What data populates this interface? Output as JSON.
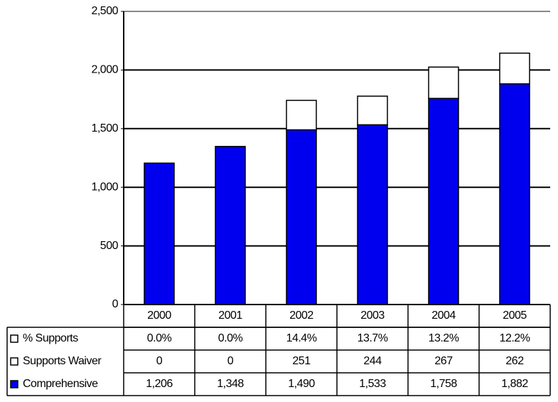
{
  "chart_data": {
    "type": "bar",
    "stacked": true,
    "categories": [
      "2000",
      "2001",
      "2002",
      "2003",
      "2004",
      "2005"
    ],
    "series": [
      {
        "name": "Comprehensive",
        "color": "#0000ee",
        "values": [
          1206,
          1348,
          1490,
          1533,
          1758,
          1882
        ],
        "value_labels": [
          "1,206",
          "1,348",
          "1,490",
          "1,533",
          "1,758",
          "1,882"
        ]
      },
      {
        "name": "Supports Waiver",
        "color": "#ffffff",
        "values": [
          0,
          0,
          251,
          244,
          267,
          262
        ]
      }
    ],
    "percent_row": {
      "name": "% Supports",
      "color": "#ffffff",
      "values": [
        0.0,
        0.0,
        14.4,
        13.7,
        13.2,
        12.2
      ],
      "value_labels": [
        "0.0%",
        "0.0%",
        "14.4%",
        "13.7%",
        "13.2%",
        "12.2%"
      ]
    },
    "ylim": [
      0,
      2500
    ],
    "yticks": [
      0,
      500,
      {
        "value": 1000,
        "label": "1,000"
      },
      {
        "value": 1500,
        "label": "1,500"
      },
      {
        "value": 2000,
        "label": "2,000"
      },
      {
        "value": 2500,
        "label": "2,500"
      }
    ],
    "grid": true
  }
}
